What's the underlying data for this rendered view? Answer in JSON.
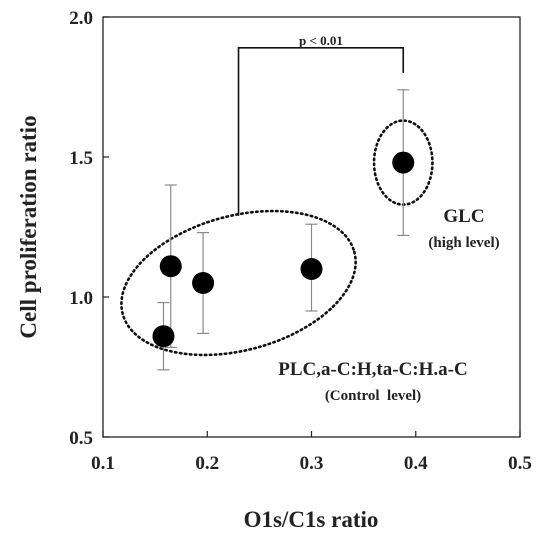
{
  "chart_data": {
    "type": "scatter",
    "title": "",
    "xlabel": "O1s/C1s ratio",
    "ylabel": "Cell proliferation ratio",
    "xlim": [
      0.1,
      0.5
    ],
    "ylim": [
      0.5,
      2.0
    ],
    "x_ticks": [
      "0.1",
      "0.2",
      "0.3",
      "0.4",
      "0.5"
    ],
    "y_ticks": [
      "0.5",
      "1.0",
      "1.5",
      "2.0"
    ],
    "grid": false,
    "legend": "none",
    "marker_color": "#000000",
    "series": [
      {
        "points": [
          {
            "x": 0.158,
            "y": 0.86,
            "err_low": 0.74,
            "err_high": 0.98
          },
          {
            "x": 0.165,
            "y": 1.11,
            "err_low": 0.82,
            "err_high": 1.4
          },
          {
            "x": 0.196,
            "y": 1.05,
            "err_low": 0.87,
            "err_high": 1.23
          },
          {
            "x": 0.3,
            "y": 1.1,
            "err_low": 0.95,
            "err_high": 1.26
          },
          {
            "x": 0.388,
            "y": 1.48,
            "err_low": 1.22,
            "err_high": 1.74
          }
        ]
      }
    ],
    "annotations": {
      "significance": "p < 0.01",
      "group_high_title": "GLC",
      "group_high_subtitle": "(high level)",
      "group_control_title": "PLC,a-C:H,ta-C:H.a-C",
      "group_control_subtitle": "(Control  level)"
    },
    "bracket": {
      "x_left": 0.23,
      "x_right": 0.388,
      "y_top": 1.89,
      "y_left_bottom": 1.29,
      "y_right_bottom": 1.8
    },
    "ellipses": [
      {
        "cx": 0.23,
        "cy": 1.05,
        "rx": 0.115,
        "ry": 0.24,
        "angle_deg": -15
      },
      {
        "cx": 0.388,
        "cy": 1.48,
        "rx": 0.028,
        "ry": 0.15,
        "angle_deg": 0
      }
    ]
  }
}
